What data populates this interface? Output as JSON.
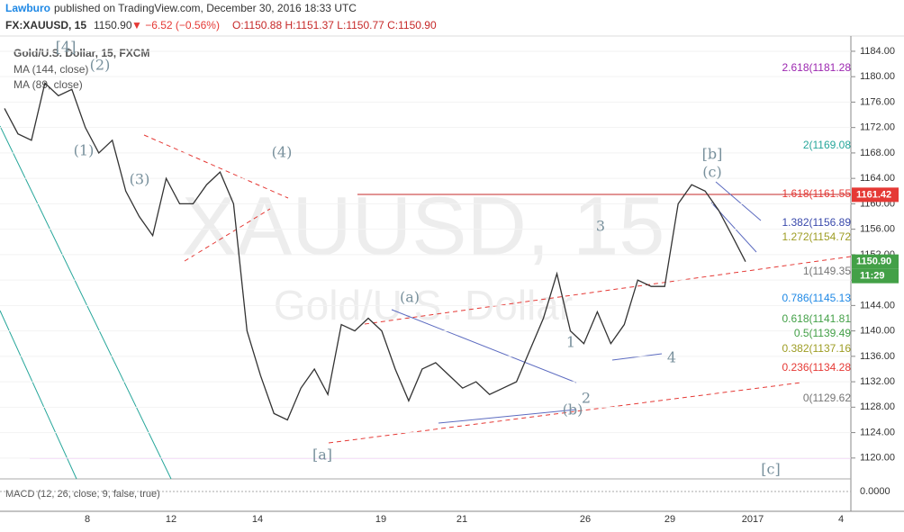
{
  "header": {
    "author": "Lawburo",
    "published": "published on TradingView.com, December 30, 2016 18:33 UTC",
    "symbol": "FX:XAUUSD, 15",
    "last": "1150.90",
    "change": "▼ −6.52 (−0.56%)",
    "ohlc": "O:1150.88 H:1151.37 L:1150.77 C:1150.90"
  },
  "legend": [
    "Gold/U.S. Dollar, 15, FXCM",
    "MA (144, close)",
    "MA (89, close)"
  ],
  "watermark": [
    "XAUUSD, 15",
    "Gold/U.S. Dollar"
  ],
  "chart_data": {
    "type": "line",
    "series": [
      {
        "name": "Gold/U.S. Dollar, 15, FXCM",
        "color": "#333333",
        "values": [
          1175,
          1171,
          1170,
          1179,
          1177,
          1178,
          1172,
          1168,
          1170,
          1162,
          1158,
          1155,
          1164,
          1160,
          1160,
          1163,
          1165,
          1160,
          1140,
          1133,
          1127,
          1126,
          1131,
          1134,
          1130,
          1141,
          1140,
          1142,
          1140,
          1134,
          1129,
          1134,
          1135,
          1133,
          1131,
          1132,
          1130,
          1131,
          1132,
          1137,
          1142,
          1149,
          1140,
          1138,
          1143,
          1138,
          1141,
          1148,
          1147,
          1147,
          1160,
          1163,
          1162,
          1159,
          1155,
          1150.9
        ]
      }
    ],
    "ylim": [
      1117,
      1186.4
    ],
    "yticks": [
      {
        "value": 1120,
        "label": "1120.00"
      },
      {
        "value": 1124,
        "label": "1124.00"
      },
      {
        "value": 1128,
        "label": "1128.00"
      },
      {
        "value": 1132,
        "label": "1132.00"
      },
      {
        "value": 1136,
        "label": "1136.00"
      },
      {
        "value": 1140,
        "label": "1140.00"
      },
      {
        "value": 1144,
        "label": "1144.00"
      },
      {
        "value": 1148,
        "label": "1148.00"
      },
      {
        "value": 1152,
        "label": "1152.00"
      },
      {
        "value": 1156,
        "label": "1156.00"
      },
      {
        "value": 1160,
        "label": "1160.00"
      },
      {
        "value": 1164,
        "label": "1164.00"
      },
      {
        "value": 1168,
        "label": "1168.00"
      },
      {
        "value": 1172,
        "label": "1172.00"
      },
      {
        "value": 1176,
        "label": "1176.00"
      },
      {
        "value": 1180,
        "label": "1180.00"
      },
      {
        "value": 1184,
        "label": "1184.00"
      }
    ],
    "xticks": [
      "8",
      "12",
      "14",
      "19",
      "21",
      "26",
      "29",
      "2017",
      "4"
    ],
    "price_labels": [
      {
        "value": 1161.42,
        "label": "1161.42",
        "color": "#e53935"
      },
      {
        "value": 1150.9,
        "label": "1150.90",
        "color": "#43a047"
      }
    ],
    "time_label": "11:29",
    "waves": [
      "[4]",
      "(2)",
      "(1)",
      "(3)",
      "(4)",
      "[a]",
      "(a)",
      "(b)",
      "1",
      "2",
      "3",
      "4",
      "[b]",
      "(c)",
      "[c]"
    ],
    "fibs": [
      {
        "text": "2.618(1181.28",
        "color": "#9c27b0"
      },
      {
        "text": "2(1169.08",
        "color": "#26a69a"
      },
      {
        "text": "1.618(1161.55",
        "color": "#e53935"
      },
      {
        "text": "1.382(1156.89",
        "color": "#3949ab"
      },
      {
        "text": "1.272(1154.72",
        "color": "#9e9d24"
      },
      {
        "text": "1(1149.35",
        "color": "#757575"
      },
      {
        "text": "0.786(1145.13",
        "color": "#1e88e5"
      },
      {
        "text": "0.618(1141.81",
        "color": "#43a047"
      },
      {
        "text": "0.5(1139.49",
        "color": "#43a047"
      },
      {
        "text": "0.382(1137.16",
        "color": "#9e9d24"
      },
      {
        "text": "0.236(1134.28",
        "color": "#e53935"
      },
      {
        "text": "0(1129.62",
        "color": "#757575"
      }
    ],
    "macd_label": "MACD (12, 26, close, 9, false, true)",
    "macd_tick": "0.0000"
  }
}
